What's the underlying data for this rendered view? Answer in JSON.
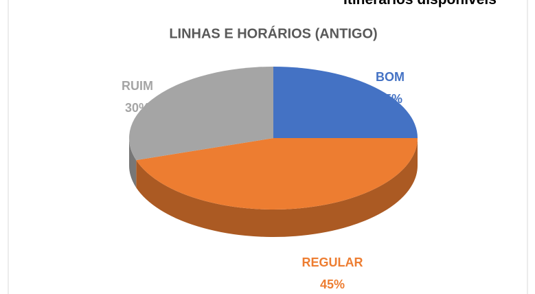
{
  "top_note": "Itinerários disponíveis",
  "chart_data": {
    "type": "pie3d",
    "title": "LINHAS E HORÁRIOS (ANTIGO)",
    "categories": [
      "BOM",
      "REGULAR",
      "RUIM"
    ],
    "values": [
      25,
      45,
      30
    ],
    "value_labels": [
      "25%",
      "45%",
      "30%"
    ],
    "colors": [
      "#4472c4",
      "#ed7d31",
      "#a5a5a5"
    ]
  }
}
